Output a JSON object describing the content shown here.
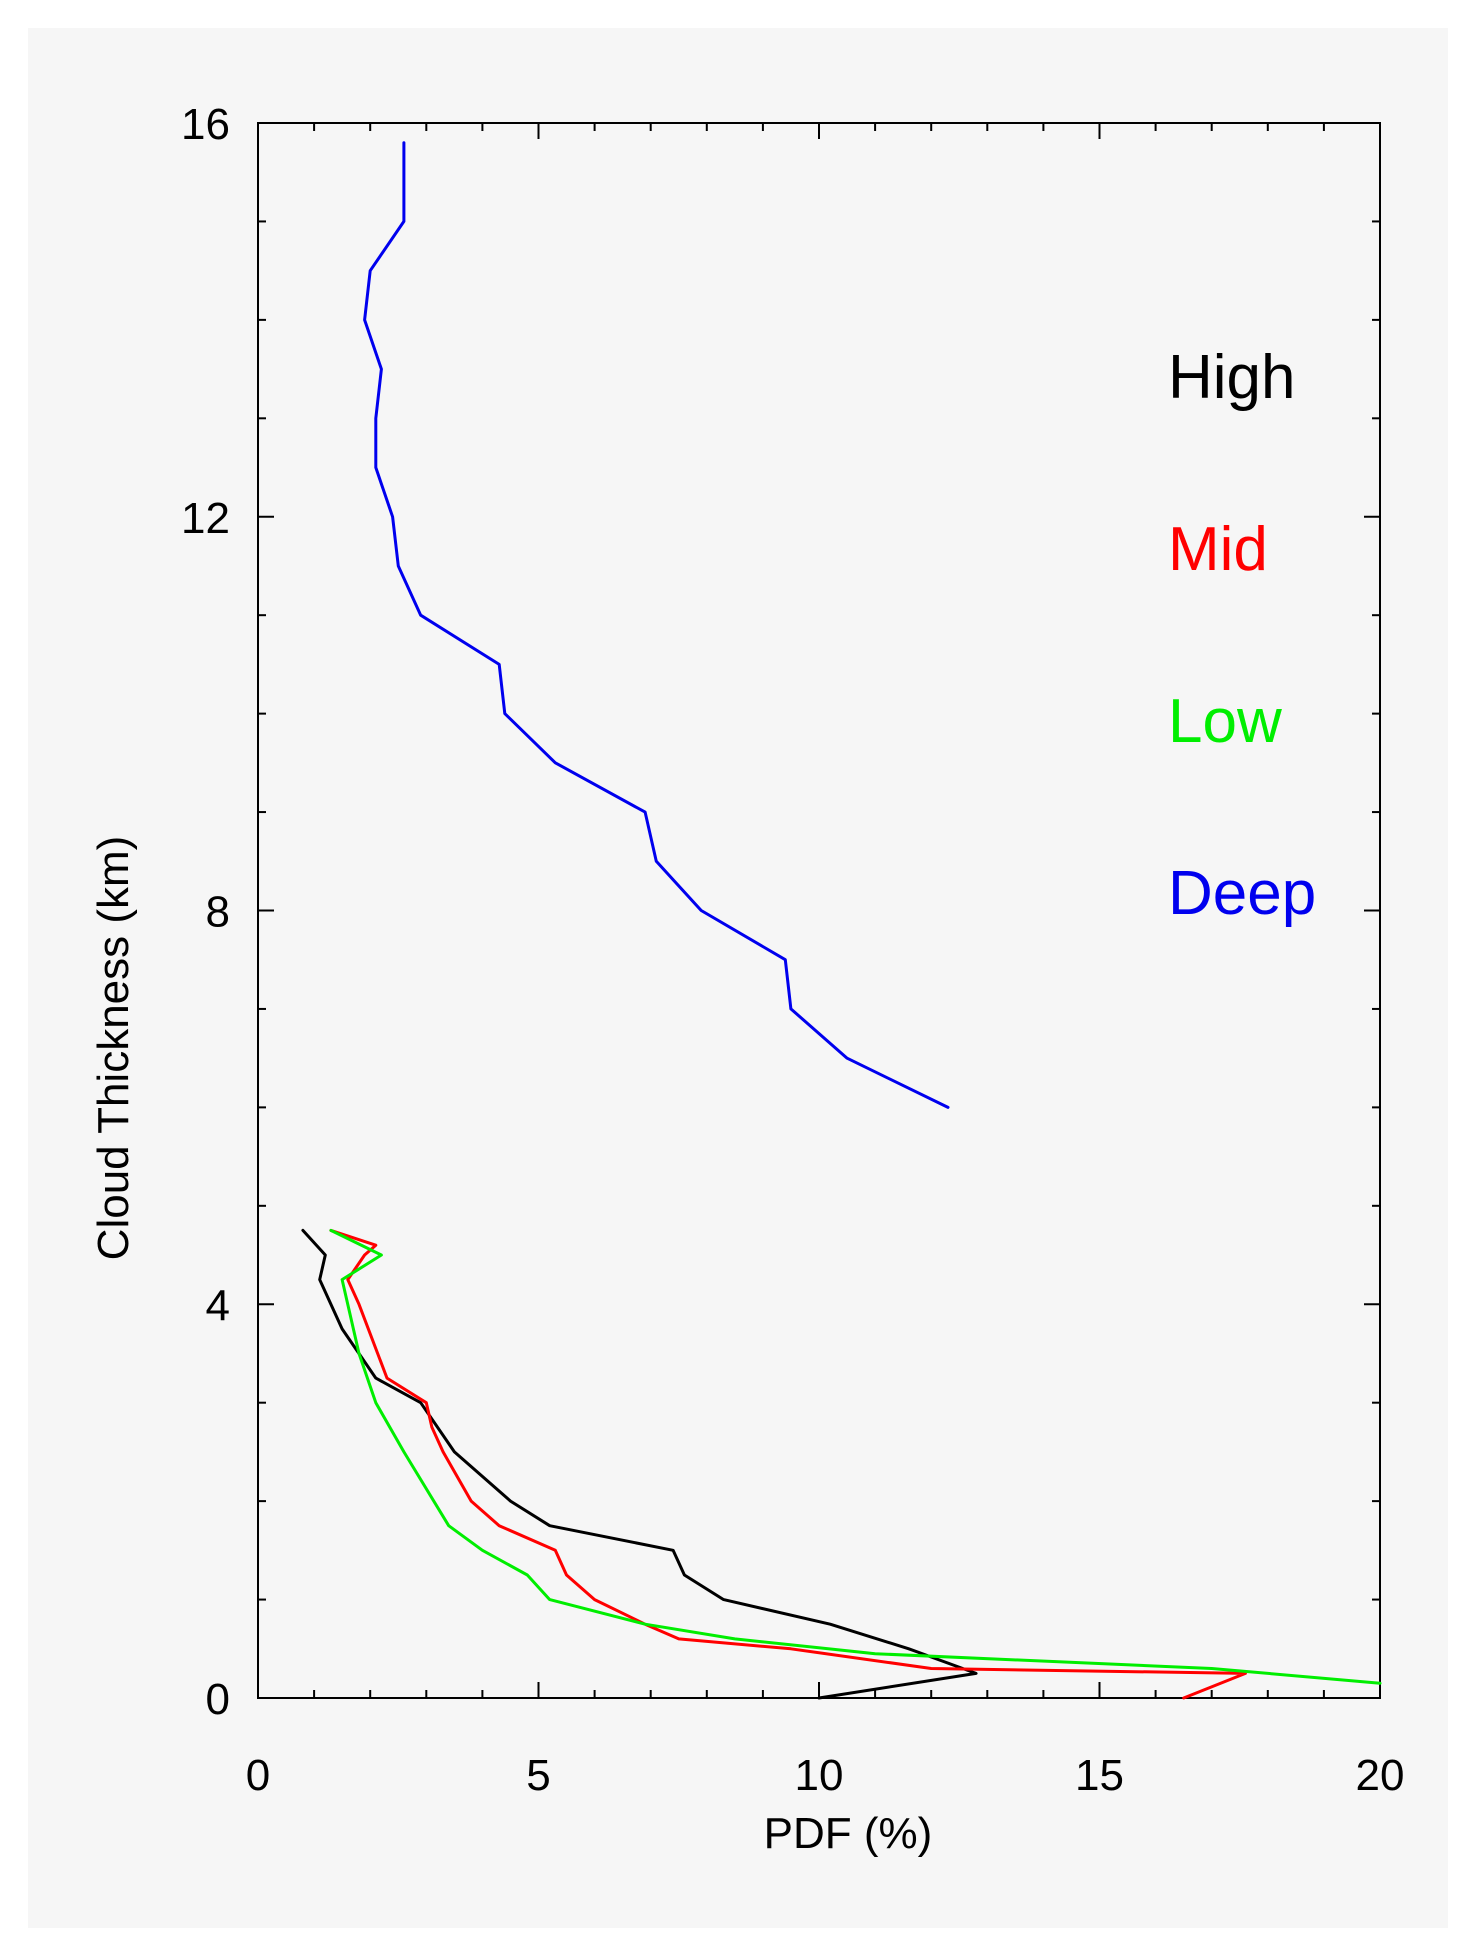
{
  "chart_data": {
    "type": "line",
    "title": "",
    "xlabel": "PDF (%)",
    "ylabel": "Cloud Thickness (km)",
    "xlim": [
      0,
      20
    ],
    "ylim": [
      0,
      16
    ],
    "xticks": [
      0,
      5,
      10,
      15,
      20
    ],
    "yticks": [
      0,
      4,
      8,
      12,
      16
    ],
    "grid": false,
    "legend_position": "right",
    "series": [
      {
        "name": "High",
        "color": "#000000",
        "points": [
          [
            10.0,
            0.0
          ],
          [
            12.8,
            0.25
          ],
          [
            11.6,
            0.5
          ],
          [
            10.2,
            0.75
          ],
          [
            8.3,
            1.0
          ],
          [
            7.6,
            1.25
          ],
          [
            7.4,
            1.5
          ],
          [
            5.2,
            1.75
          ],
          [
            4.5,
            2.0
          ],
          [
            3.5,
            2.5
          ],
          [
            2.9,
            3.0
          ],
          [
            2.1,
            3.25
          ],
          [
            1.5,
            3.75
          ],
          [
            1.1,
            4.25
          ],
          [
            1.2,
            4.5
          ],
          [
            0.8,
            4.75
          ]
        ]
      },
      {
        "name": "Mid",
        "color": "#ff0000",
        "points": [
          [
            16.5,
            0.0
          ],
          [
            17.6,
            0.25
          ],
          [
            12.0,
            0.3
          ],
          [
            9.5,
            0.5
          ],
          [
            7.5,
            0.6
          ],
          [
            6.9,
            0.75
          ],
          [
            6.0,
            1.0
          ],
          [
            5.5,
            1.25
          ],
          [
            5.3,
            1.5
          ],
          [
            4.3,
            1.75
          ],
          [
            3.8,
            2.0
          ],
          [
            3.3,
            2.5
          ],
          [
            3.1,
            2.75
          ],
          [
            3.0,
            3.0
          ],
          [
            2.3,
            3.25
          ],
          [
            1.8,
            4.0
          ],
          [
            1.6,
            4.25
          ],
          [
            1.9,
            4.5
          ],
          [
            2.1,
            4.6
          ],
          [
            1.3,
            4.75
          ]
        ]
      },
      {
        "name": "Low",
        "color": "#00ee00",
        "points": [
          [
            20.0,
            0.15
          ],
          [
            17.0,
            0.3
          ],
          [
            11.0,
            0.45
          ],
          [
            8.5,
            0.6
          ],
          [
            6.9,
            0.75
          ],
          [
            5.2,
            1.0
          ],
          [
            4.8,
            1.25
          ],
          [
            4.0,
            1.5
          ],
          [
            3.4,
            1.75
          ],
          [
            2.6,
            2.5
          ],
          [
            2.1,
            3.0
          ],
          [
            1.8,
            3.5
          ],
          [
            1.5,
            4.25
          ],
          [
            2.2,
            4.5
          ],
          [
            1.3,
            4.75
          ]
        ]
      },
      {
        "name": "Deep",
        "color": "#0000ee",
        "points": [
          [
            12.3,
            6.0
          ],
          [
            10.5,
            6.5
          ],
          [
            9.5,
            7.0
          ],
          [
            9.4,
            7.5
          ],
          [
            7.9,
            8.0
          ],
          [
            7.1,
            8.5
          ],
          [
            6.9,
            9.0
          ],
          [
            5.3,
            9.5
          ],
          [
            4.4,
            10.0
          ],
          [
            4.3,
            10.5
          ],
          [
            2.9,
            11.0
          ],
          [
            2.5,
            11.5
          ],
          [
            2.4,
            12.0
          ],
          [
            2.1,
            12.5
          ],
          [
            2.1,
            13.0
          ],
          [
            2.2,
            13.5
          ],
          [
            1.9,
            14.0
          ],
          [
            2.0,
            14.5
          ],
          [
            2.6,
            15.0
          ],
          [
            2.6,
            15.5
          ],
          [
            2.6,
            15.8
          ]
        ]
      }
    ]
  }
}
